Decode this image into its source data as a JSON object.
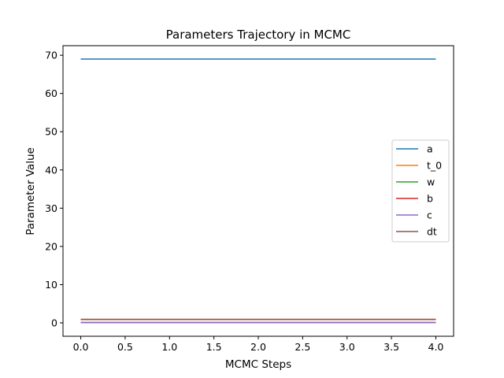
{
  "chart_data": {
    "type": "line",
    "title": "Parameters Trajectory in MCMC",
    "xlabel": "MCMC Steps",
    "ylabel": "Parameter Value",
    "x": [
      0,
      1,
      2,
      3,
      4
    ],
    "xlim": [
      -0.2,
      4.2
    ],
    "ylim": [
      -3.5,
      72.5
    ],
    "xticks": [
      "0.0",
      "0.5",
      "1.0",
      "1.5",
      "2.0",
      "2.5",
      "3.0",
      "3.5",
      "4.0"
    ],
    "yticks": [
      "0",
      "10",
      "20",
      "30",
      "40",
      "50",
      "60",
      "70"
    ],
    "grid": false,
    "legend_position": "center-right",
    "series": [
      {
        "name": "a",
        "color": "#1f77b4",
        "values": [
          69,
          69,
          69,
          69,
          69
        ]
      },
      {
        "name": "t_0",
        "color": "#ff7f0e",
        "values": [
          0.9,
          0.9,
          0.9,
          0.9,
          0.9
        ]
      },
      {
        "name": "w",
        "color": "#2ca02c",
        "values": [
          0.1,
          0.1,
          0.1,
          0.1,
          0.1
        ]
      },
      {
        "name": "b",
        "color": "#d62728",
        "values": [
          0.9,
          0.9,
          0.9,
          0.9,
          0.9
        ]
      },
      {
        "name": "c",
        "color": "#9467bd",
        "values": [
          0.1,
          0.1,
          0.1,
          0.1,
          0.1
        ]
      },
      {
        "name": "dt",
        "color": "#8c564b",
        "values": [
          0.9,
          0.9,
          0.9,
          0.9,
          0.9
        ]
      }
    ]
  }
}
